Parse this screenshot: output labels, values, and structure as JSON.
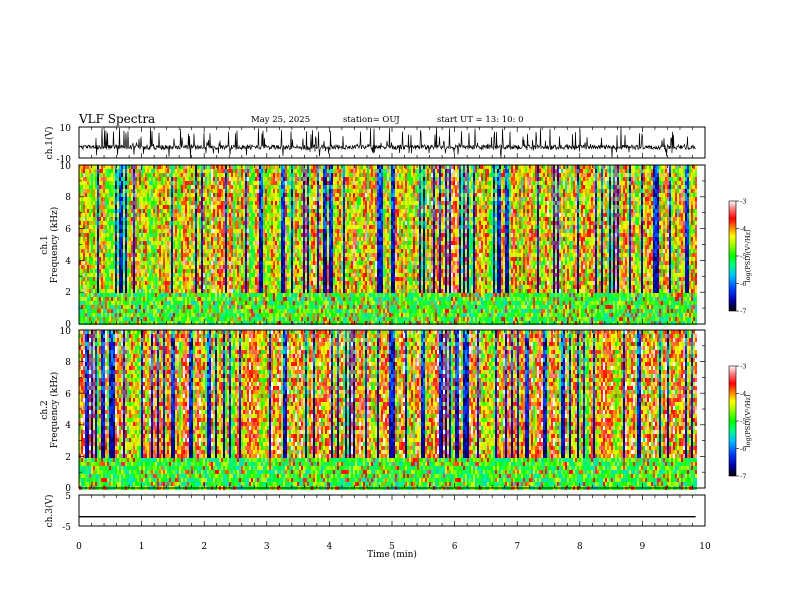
{
  "header": {
    "title": "VLF Spectra",
    "date": "May 25, 2025",
    "station": "station= OUJ",
    "start": "start UT =  13: 10: 0"
  },
  "colors": {
    "waveform": "#000000",
    "colormap": [
      "#000000",
      "#0000b0",
      "#0040ff",
      "#00c0ff",
      "#00ff80",
      "#00ff00",
      "#a0ff00",
      "#ffff00",
      "#ff8000",
      "#ff0000",
      "#ff8080",
      "#ffffff"
    ]
  },
  "chart_data": [
    {
      "type": "line",
      "id": "ch1_waveform",
      "ylabel": "ch.1(V)",
      "ylim": [
        -10,
        10
      ],
      "yticks": [
        "10",
        "-10"
      ],
      "x_range_min": [
        0,
        9.85
      ],
      "approx_level_V": -3,
      "approx_spread_V": [
        -7,
        2
      ]
    },
    {
      "type": "heatmap",
      "id": "ch1_spectrogram",
      "ylabel": "ch.1\nFrequency  (kHz)",
      "ylabel_line1": "ch.1",
      "ylabel_line2": "Frequency  (kHz)",
      "ylim": [
        0,
        10
      ],
      "yticks": [
        "0",
        "2",
        "4",
        "6",
        "8",
        "10"
      ],
      "x_range_min": [
        0,
        9.85
      ],
      "colorbar": {
        "label": "log(PSD)(V²/Hz)",
        "range": [
          -7,
          -3
        ],
        "ticks": [
          "-3",
          "-4",
          "-5",
          "-6",
          "-7"
        ]
      }
    },
    {
      "type": "heatmap",
      "id": "ch2_spectrogram",
      "ylabel": "ch.2\nFrequency  (kHz)",
      "ylabel_line1": "ch.2",
      "ylabel_line2": "Frequency  (kHz)",
      "ylim": [
        0,
        10
      ],
      "yticks": [
        "0",
        "2",
        "4",
        "6",
        "8",
        "10"
      ],
      "x_range_min": [
        0,
        9.85
      ],
      "colorbar": {
        "label": "log(PSD)(V²/Hz)",
        "range": [
          -7,
          -3
        ],
        "ticks": [
          "-3",
          "-4",
          "-5",
          "-6",
          "-7"
        ]
      }
    },
    {
      "type": "line",
      "id": "ch3_waveform",
      "ylabel": "ch.3(V)",
      "ylim": [
        -5,
        5
      ],
      "yticks": [
        "5",
        "-5"
      ],
      "x_range_min": [
        0,
        9.85
      ],
      "approx_level_V": -2
    }
  ],
  "xaxis": {
    "label": "Time  (min)",
    "xlim": [
      0,
      10
    ],
    "ticks": [
      "0",
      "1",
      "2",
      "3",
      "4",
      "5",
      "6",
      "7",
      "8",
      "9",
      "10"
    ]
  }
}
